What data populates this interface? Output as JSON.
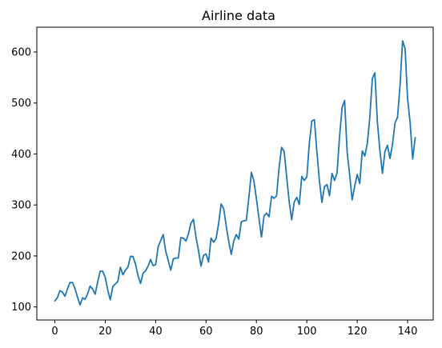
{
  "chart_data": {
    "type": "line",
    "title": "Airline data",
    "xlabel": "",
    "ylabel": "",
    "xlim": [
      -7.15,
      150.15
    ],
    "ylim": [
      74.4,
      648.6
    ],
    "x_ticks": [
      0,
      20,
      40,
      60,
      80,
      100,
      120,
      140
    ],
    "x_tick_labels": [
      "0",
      "20",
      "40",
      "60",
      "80",
      "100",
      "120",
      "140"
    ],
    "y_ticks": [
      100,
      200,
      300,
      400,
      500,
      600
    ],
    "y_tick_labels": [
      "100",
      "200",
      "300",
      "400",
      "500",
      "600"
    ],
    "grid": false,
    "series": [
      {
        "color": "#1f77b4",
        "x_start": 0,
        "x_step": 1,
        "values": [
          112,
          118,
          132,
          129,
          121,
          135,
          148,
          148,
          136,
          119,
          104,
          118,
          115,
          126,
          141,
          135,
          125,
          149,
          170,
          170,
          158,
          133,
          114,
          140,
          145,
          150,
          178,
          163,
          172,
          178,
          199,
          199,
          184,
          162,
          146,
          166,
          171,
          180,
          193,
          181,
          183,
          218,
          230,
          242,
          209,
          191,
          172,
          194,
          196,
          196,
          236,
          235,
          229,
          243,
          264,
          272,
          237,
          211,
          180,
          201,
          204,
          188,
          235,
          227,
          234,
          264,
          302,
          293,
          259,
          229,
          203,
          229,
          242,
          233,
          267,
          269,
          270,
          315,
          364,
          347,
          312,
          274,
          237,
          278,
          284,
          277,
          317,
          313,
          318,
          374,
          413,
          405,
          355,
          306,
          271,
          306,
          315,
          301,
          356,
          348,
          355,
          422,
          465,
          467,
          404,
          347,
          305,
          336,
          340,
          318,
          362,
          348,
          363,
          435,
          491,
          505,
          404,
          359,
          310,
          337,
          360,
          342,
          406,
          396,
          420,
          472,
          548,
          559,
          463,
          407,
          362,
          405,
          417,
          391,
          419,
          461,
          472,
          535,
          622,
          606,
          508,
          461,
          390,
          432
        ]
      }
    ]
  }
}
